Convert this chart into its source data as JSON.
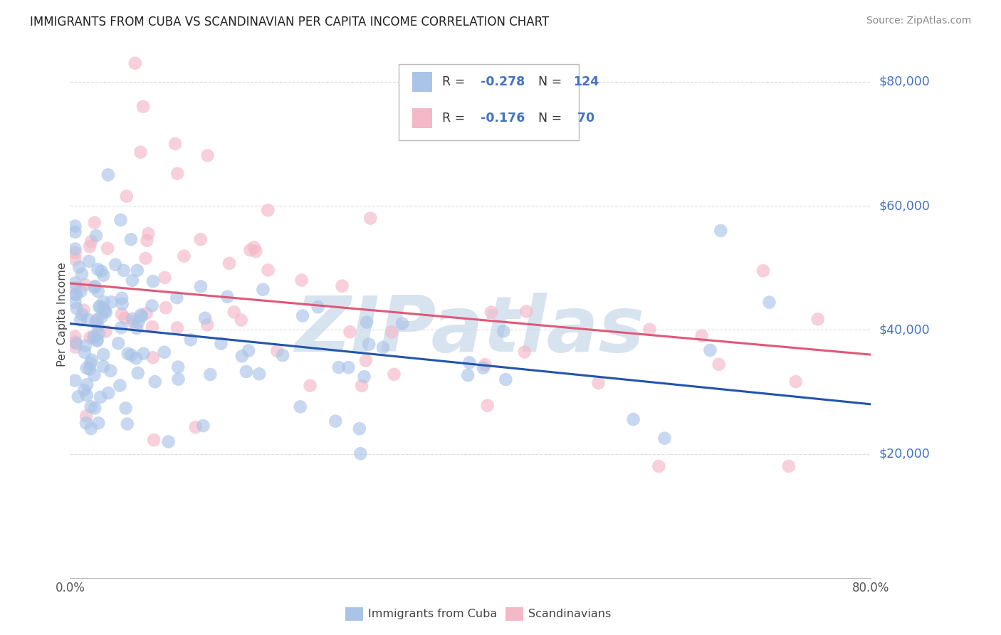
{
  "title": "IMMIGRANTS FROM CUBA VS SCANDINAVIAN PER CAPITA INCOME CORRELATION CHART",
  "source": "Source: ZipAtlas.com",
  "ylabel": "Per Capita Income",
  "legend_label1": "Immigrants from Cuba",
  "legend_label2": "Scandinavians",
  "r1": -0.278,
  "n1": 124,
  "r2": -0.176,
  "n2": 70,
  "yticks": [
    0,
    20000,
    40000,
    60000,
    80000
  ],
  "ytick_labels": [
    "",
    "$20,000",
    "$40,000",
    "$60,000",
    "$80,000"
  ],
  "y_color": "#4472c4",
  "blue_scatter_color": "#aac4e8",
  "pink_scatter_color": "#f4b8c8",
  "blue_line_color": "#2255aa",
  "pink_line_color": "#e05878",
  "title_color": "#222222",
  "source_color": "#888888",
  "background_color": "#ffffff",
  "grid_color": "#dddddd",
  "watermark": "ZIPatlas",
  "watermark_color": "#c8d8ea",
  "xmin": 0.0,
  "xmax": 0.8,
  "ymin": 0,
  "ymax": 85000,
  "blue_line_x0": 0.0,
  "blue_line_y0": 41000,
  "blue_line_x1": 0.8,
  "blue_line_y1": 28000,
  "pink_line_x0": 0.0,
  "pink_line_y0": 47500,
  "pink_line_x1": 0.8,
  "pink_line_y1": 36000
}
